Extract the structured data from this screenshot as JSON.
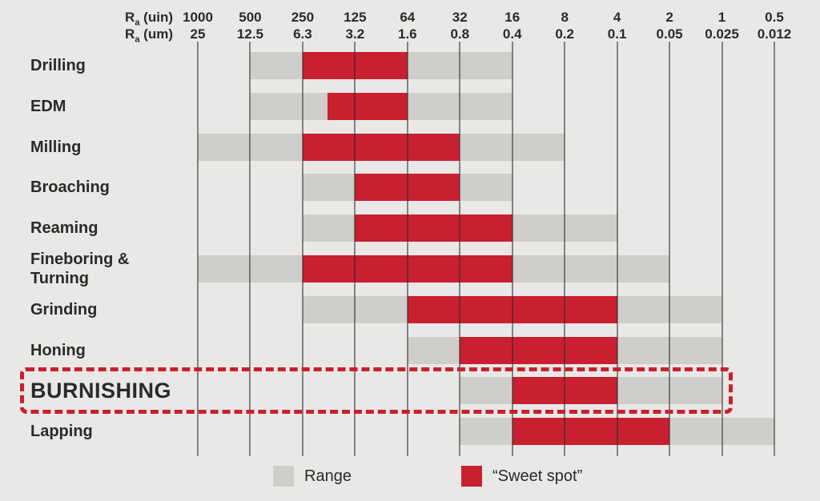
{
  "colors": {
    "background": "#e9e8e6",
    "range_bar": "#cfcecb",
    "sweet_bar": "#c8202f",
    "text": "#2b2a28",
    "highlight_border": "#c8202f"
  },
  "header": {
    "rows": [
      {
        "prefix": "R",
        "sub": "a",
        "suffix": " (uin)"
      },
      {
        "prefix": "R",
        "sub": "a",
        "suffix": " (um)"
      }
    ]
  },
  "chart_data": {
    "type": "bar",
    "orientation": "horizontal-range",
    "title": "",
    "x_axis": {
      "label_top": "Ra (uin)",
      "label_bottom": "Ra (um)",
      "scale": "log2-descending",
      "ticks_uin": [
        "1000",
        "500",
        "250",
        "125",
        "64",
        "32",
        "16",
        "8",
        "4",
        "2",
        "1",
        "0.5"
      ],
      "ticks_um": [
        "25",
        "12.5",
        "6.3",
        "3.2",
        "1.6",
        "0.8",
        "0.4",
        "0.2",
        "0.1",
        "0.05",
        "0.025",
        "0.012"
      ]
    },
    "rows": [
      {
        "process": "Drilling",
        "range_uin": [
          500,
          16
        ],
        "sweet_uin": [
          250,
          64
        ],
        "highlighted": false
      },
      {
        "process": "EDM",
        "range_uin": [
          500,
          16
        ],
        "sweet_uin": [
          180,
          64
        ],
        "highlighted": false
      },
      {
        "process": "Milling",
        "range_uin": [
          1000,
          8
        ],
        "sweet_uin": [
          250,
          32
        ],
        "highlighted": false
      },
      {
        "process": "Broaching",
        "range_uin": [
          250,
          16
        ],
        "sweet_uin": [
          125,
          32
        ],
        "highlighted": false
      },
      {
        "process": "Reaming",
        "range_uin": [
          250,
          4
        ],
        "sweet_uin": [
          125,
          16
        ],
        "highlighted": false
      },
      {
        "process": "Fineboring &\nTurning",
        "range_uin": [
          1000,
          2
        ],
        "sweet_uin": [
          250,
          16
        ],
        "highlighted": false
      },
      {
        "process": "Grinding",
        "range_uin": [
          250,
          1
        ],
        "sweet_uin": [
          64,
          4
        ],
        "highlighted": false
      },
      {
        "process": "Honing",
        "range_uin": [
          64,
          1
        ],
        "sweet_uin": [
          32,
          4
        ],
        "highlighted": false
      },
      {
        "process": "BURNISHING",
        "range_uin": [
          32,
          1
        ],
        "sweet_uin": [
          16,
          4
        ],
        "highlighted": true
      },
      {
        "process": "Lapping",
        "range_uin": [
          32,
          0.5
        ],
        "sweet_uin": [
          16,
          2
        ],
        "highlighted": false
      }
    ],
    "legend": [
      {
        "label": "Range",
        "color": "#cfcecb"
      },
      {
        "label": "“Sweet spot”",
        "color": "#c8202f"
      }
    ],
    "grid": true,
    "legend_position": "bottom"
  }
}
